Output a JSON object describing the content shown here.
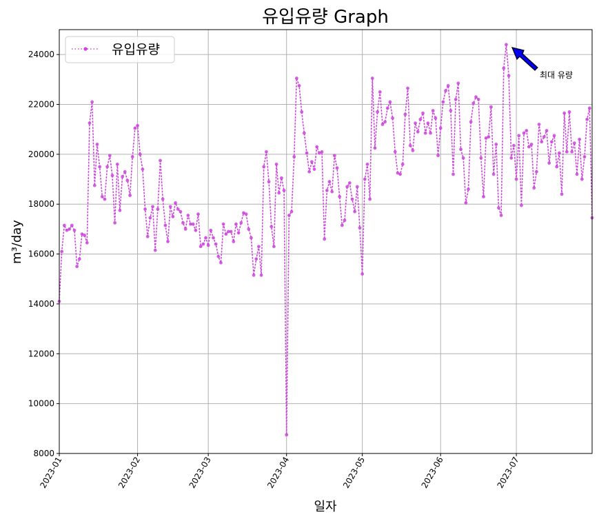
{
  "chart_data": {
    "type": "line",
    "title": "유입유량 Graph",
    "xlabel": "일자",
    "ylabel": "m³/day",
    "x_start": "2023-01-01",
    "x_end": "2023-07-31",
    "xlim": [
      "2023-01-01",
      "2023-07-31"
    ],
    "ylim": [
      8000,
      25000
    ],
    "grid": true,
    "legend_position": "top-left",
    "x_ticks": [
      "2023-01",
      "2023-02",
      "2023-03",
      "2023-04",
      "2023-05",
      "2023-06",
      "2023-07"
    ],
    "y_ticks": [
      8000,
      10000,
      12000,
      14000,
      16000,
      18000,
      20000,
      22000,
      24000
    ],
    "series": [
      {
        "name": "유입유량",
        "color": "#cc44dd",
        "line_style": "dotted",
        "marker": "circle",
        "values": [
          14100,
          16100,
          17150,
          16950,
          17000,
          17150,
          16950,
          15500,
          15800,
          16800,
          16750,
          16450,
          21250,
          22100,
          18750,
          20400,
          19500,
          18300,
          18200,
          19500,
          19950,
          19150,
          17250,
          19600,
          17750,
          19100,
          19300,
          18950,
          18350,
          19900,
          21050,
          21150,
          20000,
          19400,
          17800,
          16700,
          17450,
          17900,
          16150,
          17800,
          19750,
          18200,
          17150,
          16500,
          17900,
          17500,
          18050,
          17800,
          17700,
          17250,
          17000,
          17550,
          17200,
          17200,
          16950,
          17600,
          16300,
          16400,
          16650,
          16350,
          16950,
          16650,
          16400,
          15900,
          15650,
          17200,
          16800,
          16900,
          16900,
          16500,
          17200,
          16850,
          17250,
          17650,
          17600,
          17000,
          16650,
          15150,
          15800,
          16300,
          15150,
          19500,
          20100,
          18900,
          17100,
          16300,
          19600,
          18450,
          19050,
          18550,
          8750,
          17550,
          17700,
          19900,
          23050,
          22750,
          21700,
          20850,
          20050,
          19300,
          19700,
          19400,
          20300,
          20050,
          20100,
          16600,
          18550,
          18900,
          18500,
          19950,
          19450,
          18300,
          17150,
          17350,
          18700,
          18850,
          18200,
          17700,
          18700,
          17050,
          15200,
          19000,
          19600,
          18200,
          23050,
          20250,
          21700,
          22500,
          21200,
          21300,
          21850,
          22100,
          21450,
          20100,
          19250,
          19200,
          19600,
          21600,
          22650,
          20350,
          20150,
          21250,
          20900,
          21400,
          21650,
          20850,
          21250,
          20850,
          21750,
          21450,
          19950,
          21050,
          22100,
          22550,
          22750,
          21750,
          19200,
          22200,
          22850,
          20200,
          19850,
          18050,
          18600,
          21300,
          22050,
          22300,
          22200,
          19850,
          18300,
          20650,
          20700,
          21900,
          19200,
          20400,
          17850,
          17550,
          23450,
          24400,
          23150,
          19850,
          20350,
          19000,
          20750,
          17950,
          20850,
          20950,
          20300,
          20400,
          18650,
          19300,
          21200,
          20500,
          20700,
          20950,
          19650,
          20500,
          20750,
          19500,
          20050,
          18400,
          21650,
          20100,
          21700,
          20100,
          20450,
          19200,
          20600,
          19000,
          19900,
          21400,
          21850,
          17450
        ]
      }
    ],
    "annotations": [
      {
        "text": "최대 유량",
        "x": "2023-06-28",
        "y": 24400
      }
    ]
  }
}
